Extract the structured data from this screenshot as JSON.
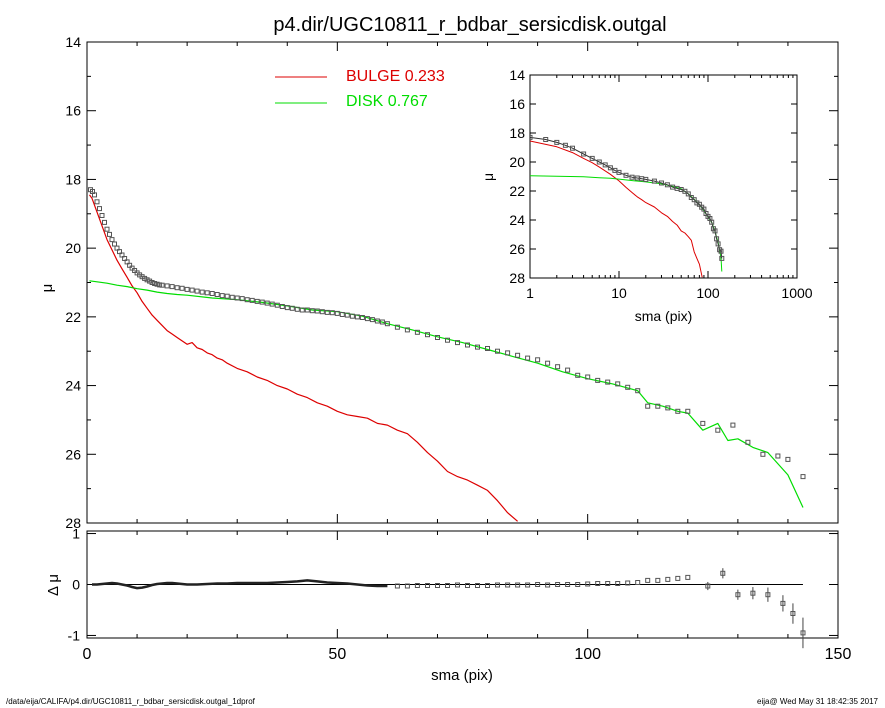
{
  "title": "p4.dir/UGC10811_r_bdbar_sersicdisk.outgal",
  "footer": {
    "path": "/data/eija/CALIFA/p4.dir/UGC10811_r_bdbar_sersicdisk.outgal_1dprof",
    "stamp": "eija@  Wed May 31 18:42:35 2017"
  },
  "colors": {
    "bulge": "#dd0000",
    "disk": "#00dd00",
    "axes": "#000000",
    "points": "#555555"
  },
  "chart_data": [
    {
      "type": "line",
      "panel": "main",
      "xlabel": "",
      "ylabel": "μ",
      "xlim": [
        0,
        150
      ],
      "ylim": [
        28,
        14
      ],
      "y_inverted": true,
      "yticks": [
        14,
        16,
        18,
        20,
        22,
        24,
        26,
        28
      ],
      "ytick_labels": [
        "14",
        "16",
        "18",
        "20",
        "22",
        "24",
        "26",
        "28"
      ],
      "legend": [
        {
          "label": "BULGE",
          "value": "0.233"
        },
        {
          "label": "DISK",
          "value": "0.767"
        }
      ],
      "series": [
        {
          "name": "BULGE",
          "kind": "line",
          "x": [
            0.5,
            1,
            2,
            3,
            4,
            5,
            6,
            7,
            8,
            9,
            10,
            11,
            12,
            13,
            14,
            15,
            16,
            17,
            18,
            19,
            20,
            21,
            22,
            23,
            24,
            25,
            26,
            27,
            28,
            30,
            32,
            34,
            36,
            38,
            40,
            42,
            44,
            46,
            48,
            50,
            52,
            54,
            56,
            58,
            60,
            62,
            64,
            66,
            68,
            70,
            72,
            74,
            76,
            78,
            80,
            82,
            84,
            86
          ],
          "y": [
            18.45,
            18.55,
            18.95,
            19.35,
            19.75,
            20.05,
            20.35,
            20.6,
            20.85,
            21.1,
            21.3,
            21.55,
            21.75,
            21.95,
            22.1,
            22.25,
            22.4,
            22.5,
            22.6,
            22.7,
            22.8,
            22.75,
            22.9,
            22.95,
            23.05,
            23.1,
            23.2,
            23.25,
            23.35,
            23.5,
            23.6,
            23.75,
            23.85,
            24.0,
            24.1,
            24.25,
            24.35,
            24.5,
            24.6,
            24.75,
            24.85,
            24.9,
            24.95,
            25.1,
            25.15,
            25.3,
            25.4,
            25.65,
            25.95,
            26.2,
            26.5,
            26.65,
            26.75,
            26.9,
            27.05,
            27.35,
            27.7,
            27.95
          ]
        },
        {
          "name": "DISK",
          "kind": "line",
          "x": [
            0.5,
            2,
            4,
            6,
            8,
            10,
            12,
            14,
            16,
            18,
            20,
            25,
            30,
            35,
            40,
            45,
            50,
            55,
            60,
            65,
            70,
            75,
            80,
            85,
            90,
            95,
            100,
            105,
            110,
            112,
            115,
            118,
            120,
            123,
            126,
            128,
            130,
            133,
            136,
            140,
            143
          ],
          "y": [
            20.95,
            20.98,
            21.02,
            21.08,
            21.12,
            21.18,
            21.22,
            21.28,
            21.32,
            21.35,
            21.37,
            21.45,
            21.5,
            21.58,
            21.68,
            21.8,
            21.85,
            21.98,
            22.2,
            22.38,
            22.58,
            22.75,
            22.95,
            23.15,
            23.35,
            23.6,
            23.8,
            23.95,
            24.15,
            24.5,
            24.6,
            24.75,
            24.8,
            25.3,
            25.1,
            25.6,
            25.55,
            25.8,
            25.95,
            26.6,
            27.55
          ]
        },
        {
          "name": "",
          "kind": "points",
          "x": [
            0.7,
            1.1,
            1.5,
            2.0,
            2.5,
            3.0,
            3.5,
            4.0,
            4.5,
            5.0,
            5.5,
            6.0,
            6.5,
            7.0,
            7.5,
            8.0,
            8.5,
            9.0,
            9.5,
            10.0,
            10.5,
            11.0,
            11.5,
            12.0,
            12.5,
            13.0,
            13.5,
            14.0,
            14.5,
            15.0,
            16,
            17,
            18,
            19,
            20,
            21,
            22,
            23,
            24,
            25,
            26,
            27,
            28,
            29,
            30,
            31,
            32,
            33,
            34,
            35,
            36,
            37,
            38,
            39,
            40,
            41,
            42,
            43,
            44,
            45,
            46,
            47,
            48,
            49,
            50,
            51,
            52,
            53,
            54,
            55,
            56,
            57,
            58,
            59,
            60,
            62,
            64,
            66,
            68,
            70,
            72,
            74,
            76,
            78,
            80,
            82,
            84,
            86,
            88,
            90,
            92,
            94,
            96,
            98,
            100,
            102,
            104,
            106,
            108,
            110,
            112,
            114,
            116,
            118,
            120,
            123,
            126,
            129,
            132,
            135,
            138,
            140,
            143
          ],
          "y": [
            18.3,
            18.35,
            18.45,
            18.65,
            18.85,
            19.05,
            19.25,
            19.45,
            19.6,
            19.75,
            19.88,
            20.0,
            20.1,
            20.2,
            20.3,
            20.4,
            20.5,
            20.58,
            20.65,
            20.72,
            20.78,
            20.83,
            20.88,
            20.92,
            20.96,
            21.0,
            21.03,
            21.05,
            21.07,
            21.08,
            21.1,
            21.12,
            21.15,
            21.17,
            21.2,
            21.22,
            21.25,
            21.28,
            21.3,
            21.32,
            21.35,
            21.38,
            21.4,
            21.43,
            21.45,
            21.47,
            21.5,
            21.52,
            21.55,
            21.57,
            21.6,
            21.63,
            21.66,
            21.7,
            21.73,
            21.75,
            21.78,
            21.8,
            21.8,
            21.82,
            21.83,
            21.85,
            21.87,
            21.88,
            21.9,
            21.93,
            21.95,
            21.98,
            22.0,
            22.02,
            22.05,
            22.08,
            22.12,
            22.15,
            22.2,
            22.3,
            22.38,
            22.45,
            22.52,
            22.6,
            22.68,
            22.75,
            22.82,
            22.88,
            22.92,
            23.0,
            23.05,
            23.12,
            23.2,
            23.25,
            23.35,
            23.45,
            23.55,
            23.7,
            23.75,
            23.85,
            23.9,
            23.95,
            24.05,
            24.15,
            24.6,
            24.6,
            24.65,
            24.75,
            24.75,
            25.1,
            25.3,
            25.15,
            25.65,
            26.0,
            26.05,
            26.15,
            26.65
          ]
        }
      ]
    },
    {
      "type": "line",
      "panel": "inset",
      "xlabel": "sma (pix)",
      "ylabel": "μ",
      "xscale": "log",
      "xlim": [
        1,
        1000
      ],
      "ylim": [
        28,
        14
      ],
      "y_inverted": true,
      "xticks": [
        1,
        10,
        100,
        1000
      ],
      "xtick_labels": [
        "1",
        "10",
        "100",
        "1000"
      ],
      "yticks": [
        14,
        16,
        18,
        20,
        22,
        24,
        26,
        28
      ],
      "ytick_labels": [
        "14",
        "16",
        "18",
        "20",
        "22",
        "24",
        "26",
        "28"
      ],
      "series": [
        {
          "name": "BULGE",
          "kind": "line",
          "x": [
            1,
            2,
            3,
            4,
            5,
            6,
            8,
            10,
            12,
            14,
            16,
            18,
            20,
            25,
            30,
            35,
            40,
            45,
            50,
            55,
            60,
            65,
            70,
            75,
            80,
            86
          ],
          "y": [
            18.55,
            18.95,
            19.35,
            19.75,
            20.05,
            20.35,
            20.85,
            21.3,
            21.75,
            22.1,
            22.4,
            22.6,
            22.8,
            23.1,
            23.5,
            23.75,
            24.1,
            24.35,
            24.75,
            24.9,
            25.15,
            25.4,
            26.2,
            26.65,
            27.05,
            27.95
          ]
        },
        {
          "name": "DISK",
          "kind": "line",
          "x": [
            1,
            2,
            4,
            6,
            8,
            10,
            15,
            20,
            25,
            30,
            40,
            50,
            60,
            70,
            80,
            90,
            100,
            110,
            120,
            130,
            140,
            143
          ],
          "y": [
            20.95,
            20.98,
            21.02,
            21.08,
            21.12,
            21.18,
            21.3,
            21.37,
            21.45,
            21.5,
            21.68,
            21.85,
            22.2,
            22.58,
            22.95,
            23.35,
            23.8,
            24.15,
            24.8,
            25.55,
            26.6,
            27.55
          ]
        },
        {
          "name": "",
          "kind": "points",
          "x": [
            1,
            1.5,
            2,
            2.5,
            3,
            4,
            5,
            6,
            7,
            8,
            9,
            10,
            12,
            14,
            16,
            18,
            20,
            25,
            30,
            35,
            40,
            45,
            50,
            55,
            60,
            65,
            70,
            75,
            80,
            85,
            90,
            95,
            100,
            105,
            110,
            115,
            120,
            125,
            130,
            135,
            140,
            143
          ],
          "y": [
            18.3,
            18.45,
            18.65,
            18.85,
            19.05,
            19.45,
            19.75,
            20.0,
            20.2,
            20.4,
            20.58,
            20.72,
            20.92,
            21.05,
            21.1,
            21.15,
            21.2,
            21.32,
            21.45,
            21.57,
            21.73,
            21.82,
            21.9,
            22.02,
            22.2,
            22.45,
            22.6,
            22.82,
            22.92,
            23.12,
            23.25,
            23.55,
            23.75,
            23.9,
            24.15,
            24.6,
            24.75,
            25.3,
            25.65,
            26.05,
            26.15,
            26.65
          ]
        }
      ]
    },
    {
      "type": "scatter",
      "panel": "residual",
      "xlabel": "sma (pix)",
      "ylabel": "Δ μ",
      "xlim": [
        0,
        150
      ],
      "ylim": [
        -1.05,
        1.05
      ],
      "xticks": [
        0,
        50,
        100,
        150
      ],
      "xtick_labels": [
        "0",
        "50",
        "100",
        "150"
      ],
      "yticks": [
        -1,
        0,
        1
      ],
      "ytick_labels": [
        "-1",
        "0",
        "1"
      ],
      "zero_line": true,
      "residual_curve": {
        "x": [
          1,
          2,
          3,
          4,
          5,
          6,
          7,
          8,
          9,
          10,
          11,
          12,
          13,
          14,
          15,
          16,
          17,
          18,
          19,
          20,
          22,
          24,
          26,
          28,
          30,
          32,
          34,
          36,
          38,
          40,
          42,
          44,
          46,
          48,
          50,
          52,
          54,
          56,
          58,
          60
        ],
        "y": [
          0.0,
          0.0,
          0.01,
          0.02,
          0.03,
          0.02,
          0.0,
          -0.02,
          -0.05,
          -0.07,
          -0.06,
          -0.04,
          -0.01,
          0.01,
          0.02,
          0.03,
          0.03,
          0.02,
          0.01,
          0.0,
          0.0,
          0.01,
          0.02,
          0.02,
          0.03,
          0.03,
          0.03,
          0.03,
          0.04,
          0.05,
          0.06,
          0.08,
          0.06,
          0.04,
          0.03,
          0.02,
          0.0,
          -0.02,
          -0.03,
          -0.03
        ]
      },
      "points": {
        "x": [
          62,
          64,
          66,
          68,
          70,
          72,
          74,
          76,
          78,
          80,
          82,
          84,
          86,
          88,
          90,
          92,
          94,
          96,
          98,
          100,
          102,
          104,
          106,
          108,
          110,
          112,
          114,
          116,
          118,
          120,
          124,
          127,
          130,
          133,
          136,
          139,
          141,
          143
        ],
        "y": [
          -0.03,
          -0.03,
          -0.02,
          -0.02,
          -0.02,
          -0.02,
          -0.01,
          -0.02,
          -0.02,
          -0.02,
          -0.01,
          -0.01,
          -0.01,
          -0.01,
          0.0,
          -0.01,
          0.0,
          0.0,
          0.0,
          0.01,
          0.02,
          0.02,
          0.02,
          0.03,
          0.04,
          0.08,
          0.08,
          0.1,
          0.12,
          0.14,
          -0.03,
          0.22,
          -0.2,
          -0.17,
          -0.2,
          -0.37,
          -0.57,
          -0.95
        ],
        "err": [
          0,
          0,
          0,
          0,
          0,
          0,
          0,
          0,
          0,
          0,
          0,
          0,
          0,
          0,
          0,
          0,
          0,
          0,
          0,
          0,
          0,
          0,
          0,
          0,
          0,
          0,
          0,
          0,
          0,
          0,
          0.08,
          0.1,
          0.1,
          0.12,
          0.14,
          0.16,
          0.2,
          0.3
        ]
      }
    }
  ]
}
